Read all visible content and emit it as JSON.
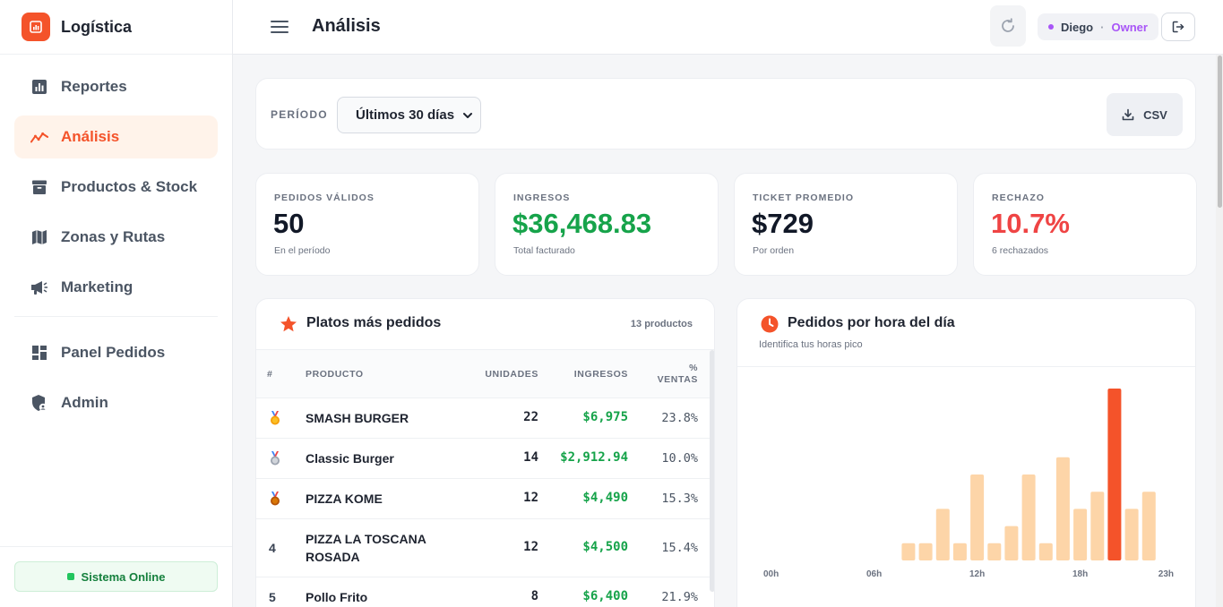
{
  "app": {
    "name": "Logística"
  },
  "sidebar": {
    "items": [
      {
        "label": "Reportes",
        "icon": "bar-chart-icon",
        "active": false
      },
      {
        "label": "Análisis",
        "icon": "trend-line-icon",
        "active": true
      },
      {
        "label": "Productos & Stock",
        "icon": "archive-box-icon",
        "active": false
      },
      {
        "label": "Zonas y Rutas",
        "icon": "map-icon",
        "active": false
      },
      {
        "label": "Marketing",
        "icon": "megaphone-icon",
        "active": false
      },
      {
        "label": "Panel Pedidos",
        "icon": "dashboard-grid-icon",
        "active": false
      },
      {
        "label": "Admin",
        "icon": "shield-user-icon",
        "active": false
      }
    ],
    "status": "Sistema Online"
  },
  "header": {
    "title": "Análisis",
    "user": {
      "name": "Diego",
      "separator": "·",
      "role": "Owner"
    }
  },
  "filters": {
    "period_label": "PERÍODO",
    "period_value": "Últimos 30 días",
    "export_label": "CSV"
  },
  "kpis": [
    {
      "label": "PEDIDOS VÁLIDOS",
      "value": "50",
      "sub": "En el período",
      "color": "#111827"
    },
    {
      "label": "INGRESOS",
      "value": "$36,468.83",
      "sub": "Total facturado",
      "color": "#16a34a"
    },
    {
      "label": "TICKET PROMEDIO",
      "value": "$729",
      "sub": "Por orden",
      "color": "#111827"
    },
    {
      "label": "RECHAZO",
      "value": "10.7%",
      "sub": "6 rechazados",
      "color": "#ef4444"
    }
  ],
  "products": {
    "title": "Platos más pedidos",
    "count": "13 productos",
    "columns": {
      "rank": "#",
      "product": "PRODUCTO",
      "units": "UNIDADES",
      "income": "INGRESOS",
      "pct_line1": "%",
      "pct_line2": "VENTAS"
    },
    "rows": [
      {
        "rank": "",
        "medal": "gold",
        "name": "SMASH BURGER",
        "units": "22",
        "income": "$6,975",
        "pct": "23.8%"
      },
      {
        "rank": "",
        "medal": "silver",
        "name": "Classic Burger",
        "units": "14",
        "income": "$2,912.94",
        "pct": "10.0%"
      },
      {
        "rank": "",
        "medal": "bronze",
        "name": "PIZZA KOME",
        "units": "12",
        "income": "$4,490",
        "pct": "15.3%"
      },
      {
        "rank": "4",
        "medal": "",
        "name": "PIZZA LA TOSCANA ROSADA",
        "units": "12",
        "income": "$4,500",
        "pct": "15.4%"
      },
      {
        "rank": "5",
        "medal": "",
        "name": "Pollo Frito",
        "units": "8",
        "income": "$6,400",
        "pct": "21.9%"
      }
    ]
  },
  "hours": {
    "title": "Pedidos por hora del día",
    "subtitle": "Identifica tus horas pico",
    "chart_data": {
      "type": "bar",
      "categories": [
        "00h",
        "01h",
        "02h",
        "03h",
        "04h",
        "05h",
        "06h",
        "07h",
        "08h",
        "09h",
        "10h",
        "11h",
        "12h",
        "13h",
        "14h",
        "15h",
        "16h",
        "17h",
        "18h",
        "19h",
        "20h",
        "21h",
        "22h",
        "23h"
      ],
      "tick_labels": [
        "00h",
        "06h",
        "12h",
        "18h",
        "23h"
      ],
      "values": [
        0,
        0,
        0,
        0,
        0,
        0,
        0,
        0,
        1,
        1,
        3,
        1,
        5,
        1,
        2,
        5,
        1,
        6,
        3,
        4,
        10,
        3,
        4,
        0
      ],
      "peak_index": 20,
      "colors": {
        "bar": "#fdd5a8",
        "peak": "#f4532a"
      }
    }
  }
}
